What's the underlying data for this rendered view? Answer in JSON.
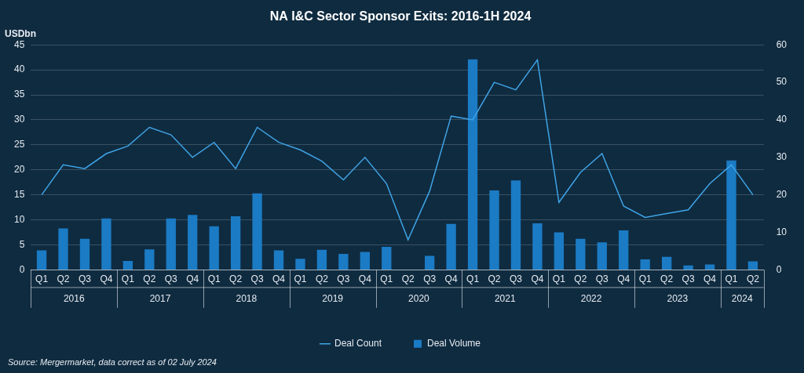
{
  "chart_data": {
    "type": "bar",
    "title": "NA I&C Sector Sponsor Exits: 2016-1H 2024",
    "ylabel": "USDbn",
    "source": "Source: Mergermarket, data correct as of 02 July 2024",
    "categories": [
      [
        "Q1",
        "2016"
      ],
      [
        "Q2",
        "2016"
      ],
      [
        "Q3",
        "2016"
      ],
      [
        "Q4",
        "2016"
      ],
      [
        "Q1",
        "2017"
      ],
      [
        "Q2",
        "2017"
      ],
      [
        "Q3",
        "2017"
      ],
      [
        "Q4",
        "2017"
      ],
      [
        "Q1",
        "2018"
      ],
      [
        "Q2",
        "2018"
      ],
      [
        "Q3",
        "2018"
      ],
      [
        "Q4",
        "2018"
      ],
      [
        "Q1",
        "2019"
      ],
      [
        "Q2",
        "2019"
      ],
      [
        "Q3",
        "2019"
      ],
      [
        "Q4",
        "2019"
      ],
      [
        "Q1",
        "2020"
      ],
      [
        "Q2",
        "2020"
      ],
      [
        "Q3",
        "2020"
      ],
      [
        "Q4",
        "2020"
      ],
      [
        "Q1",
        "2021"
      ],
      [
        "Q2",
        "2021"
      ],
      [
        "Q3",
        "2021"
      ],
      [
        "Q4",
        "2021"
      ],
      [
        "Q1",
        "2022"
      ],
      [
        "Q2",
        "2022"
      ],
      [
        "Q3",
        "2022"
      ],
      [
        "Q4",
        "2022"
      ],
      [
        "Q1",
        "2023"
      ],
      [
        "Q2",
        "2023"
      ],
      [
        "Q3",
        "2023"
      ],
      [
        "Q4",
        "2023"
      ],
      [
        "Q1",
        "2024"
      ],
      [
        "Q2",
        "2024"
      ]
    ],
    "series": [
      {
        "name": "Deal Volume",
        "type": "bar",
        "color": "#1b7bc4",
        "values": [
          3.9,
          8.3,
          6.2,
          10.3,
          1.8,
          4.1,
          10.3,
          11.0,
          8.7,
          10.7,
          15.3,
          3.9,
          2.2,
          4.0,
          3.2,
          3.6,
          4.6,
          0,
          2.8,
          9.2,
          42.1,
          15.9,
          17.9,
          9.3,
          7.5,
          6.2,
          5.5,
          7.9,
          2.1,
          2.6,
          0.9,
          1.1,
          21.9,
          1.7
        ]
      },
      {
        "name": "Deal Count",
        "type": "line",
        "color": "#3fa4e6",
        "axis": "y2",
        "marker": "none",
        "line_style": "solid",
        "values": [
          20,
          28,
          27,
          31,
          33,
          38,
          36,
          30,
          34,
          27,
          38,
          34,
          32,
          29,
          24,
          30,
          23,
          8,
          21,
          41,
          40,
          50,
          48,
          56,
          18,
          26,
          31,
          17,
          14,
          15,
          16,
          23,
          28,
          20
        ]
      }
    ],
    "ylim": [
      0,
      45
    ],
    "yticks": [
      0,
      5,
      10,
      15,
      20,
      25,
      30,
      35,
      40,
      45
    ],
    "y2lim": [
      0,
      60
    ],
    "y2ticks": [
      0,
      10,
      20,
      30,
      40,
      50,
      60
    ],
    "grid": true,
    "legend": "bottom"
  }
}
